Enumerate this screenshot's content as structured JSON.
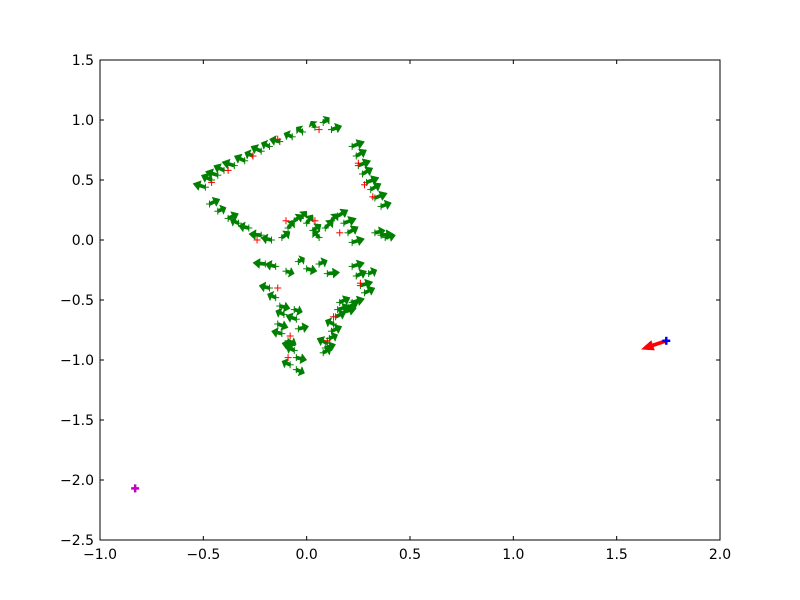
{
  "chart_data": {
    "type": "scatter",
    "title": "",
    "xlabel": "",
    "ylabel": "",
    "xlim": [
      -1.0,
      2.0
    ],
    "ylim": [
      -2.5,
      1.5
    ],
    "xticks": [
      "−1.0",
      "−0.5",
      "0.0",
      "0.5",
      "1.0",
      "1.5",
      "2.0"
    ],
    "yticks": [
      "−2.5",
      "−2.0",
      "−1.5",
      "−1.0",
      "−0.5",
      "0.0",
      "0.5",
      "1.0",
      "1.5"
    ],
    "grid": false,
    "legend": "none",
    "series": [
      {
        "marker": "plus",
        "color": "#008000",
        "arrow_color": "#008000",
        "x": [
          -0.49,
          -0.46,
          -0.43,
          -0.4,
          -0.35,
          -0.3,
          -0.26,
          -0.22,
          -0.18,
          -0.13,
          -0.07,
          -0.02,
          0.04,
          0.08,
          0.12,
          0.22,
          0.24,
          0.25,
          0.27,
          0.29,
          0.31,
          0.33,
          0.36,
          -0.47,
          -0.43,
          -0.38,
          -0.33,
          -0.28,
          -0.22,
          -0.17,
          -0.12,
          -0.09,
          -0.06,
          -0.03,
          0.0,
          0.03,
          0.06,
          0.09,
          0.12,
          0.15,
          0.18,
          0.2,
          0.22,
          0.33,
          0.36,
          0.38,
          -0.2,
          -0.15,
          -0.1,
          -0.04,
          0.0,
          0.06,
          0.1,
          0.22,
          0.24,
          0.26,
          0.28,
          0.3,
          -0.18,
          -0.15,
          -0.13,
          -0.11,
          -0.14,
          -0.12,
          -0.09,
          -0.07,
          -0.06,
          -0.05,
          -0.08,
          -0.05,
          -0.04,
          -0.05,
          -0.06,
          0.16,
          0.15,
          0.14,
          0.13,
          0.12,
          0.11,
          0.1,
          0.09,
          0.08,
          0.18,
          0.2,
          0.22
        ],
        "y": [
          0.44,
          0.5,
          0.54,
          0.58,
          0.62,
          0.66,
          0.7,
          0.74,
          0.78,
          0.82,
          0.86,
          0.9,
          0.94,
          0.98,
          0.92,
          0.78,
          0.7,
          0.62,
          0.55,
          0.48,
          0.42,
          0.35,
          0.28,
          0.3,
          0.24,
          0.18,
          0.14,
          0.1,
          0.04,
          0.0,
          0.02,
          0.1,
          0.16,
          0.18,
          0.14,
          0.08,
          0.02,
          0.1,
          0.16,
          0.2,
          0.14,
          0.06,
          -0.02,
          0.06,
          0.04,
          0.02,
          -0.2,
          -0.22,
          -0.26,
          -0.18,
          -0.24,
          -0.2,
          -0.28,
          -0.22,
          -0.3,
          -0.38,
          -0.44,
          -0.28,
          -0.4,
          -0.48,
          -0.55,
          -0.62,
          -0.7,
          -0.78,
          -0.84,
          -0.88,
          -0.92,
          -0.98,
          -1.04,
          -1.08,
          -0.74,
          -0.66,
          -0.58,
          -0.52,
          -0.58,
          -0.64,
          -0.7,
          -0.76,
          -0.82,
          -0.86,
          -0.9,
          -0.94,
          -0.6,
          -0.56,
          -0.52
        ],
        "dx": [
          -0.06,
          -0.05,
          -0.06,
          -0.05,
          -0.06,
          -0.05,
          -0.04,
          -0.05,
          -0.04,
          -0.05,
          -0.04,
          -0.03,
          -0.02,
          0.03,
          0.05,
          0.06,
          0.05,
          0.06,
          0.05,
          0.06,
          0.05,
          0.06,
          0.05,
          0.05,
          0.04,
          0.05,
          -0.04,
          -0.05,
          -0.06,
          -0.05,
          0.04,
          0.03,
          0.04,
          0.03,
          0.03,
          0.04,
          -0.03,
          0.04,
          0.03,
          0.05,
          0.06,
          0.05,
          0.06,
          0.05,
          0.06,
          0.05,
          -0.06,
          -0.05,
          0.04,
          0.03,
          0.05,
          0.04,
          0.06,
          0.06,
          0.05,
          0.06,
          0.05,
          0.04,
          -0.05,
          -0.04,
          0.05,
          -0.04,
          0.05,
          -0.05,
          0.04,
          -0.05,
          -0.04,
          0.05,
          -0.04,
          0.04,
          0.05,
          -0.05,
          0.04,
          0.05,
          0.06,
          0.05,
          -0.04,
          0.05,
          0.04,
          -0.05,
          0.05,
          0.04,
          0.06,
          0.05,
          0.06
        ],
        "dy": [
          0.03,
          0.04,
          0.03,
          0.04,
          0.03,
          0.04,
          0.03,
          0.04,
          0.03,
          0.02,
          0.03,
          0.04,
          0.05,
          0.04,
          0.03,
          0.04,
          0.05,
          0.04,
          0.05,
          0.04,
          0.05,
          0.04,
          0.03,
          0.04,
          0.03,
          0.04,
          0.03,
          0.02,
          0.01,
          0.02,
          0.05,
          0.06,
          0.05,
          0.06,
          0.07,
          0.05,
          0.06,
          0.07,
          0.06,
          0.05,
          0.04,
          0.05,
          0.03,
          0.02,
          0.01,
          0.02,
          0.01,
          0.02,
          -0.02,
          0.03,
          -0.02,
          0.03,
          0.01,
          0.03,
          0.04,
          0.03,
          0.04,
          0.03,
          0.02,
          0.03,
          -0.02,
          0.03,
          -0.03,
          0.02,
          -0.03,
          0.02,
          0.03,
          -0.02,
          0.03,
          -0.03,
          0.02,
          0.03,
          -0.02,
          0.04,
          0.03,
          0.04,
          0.03,
          0.04,
          0.03,
          0.04,
          0.03,
          0.04,
          0.03,
          0.04,
          0.03
        ]
      },
      {
        "marker": "plus",
        "color": "#ff0000",
        "x": [
          -0.46,
          -0.38,
          -0.26,
          -0.14,
          0.06,
          0.25,
          0.28,
          0.32,
          -0.24,
          -0.1,
          0.04,
          0.16,
          0.26,
          -0.14,
          -0.08,
          0.13,
          0.1,
          -0.09
        ],
        "y": [
          0.48,
          0.58,
          0.7,
          0.84,
          0.92,
          0.64,
          0.46,
          0.36,
          0.0,
          0.16,
          0.16,
          0.06,
          -0.36,
          -0.4,
          -0.8,
          -0.64,
          -0.84,
          -0.98
        ]
      },
      {
        "marker": "plus",
        "color": "#0000ff",
        "x": [
          1.74
        ],
        "y": [
          -0.84
        ],
        "arrow_color": "#ff0000",
        "dx": [
          -0.12
        ],
        "dy": [
          -0.07
        ]
      },
      {
        "marker": "plus",
        "color": "#bf00bf",
        "x": [
          -0.83
        ],
        "y": [
          -2.07
        ]
      }
    ]
  }
}
